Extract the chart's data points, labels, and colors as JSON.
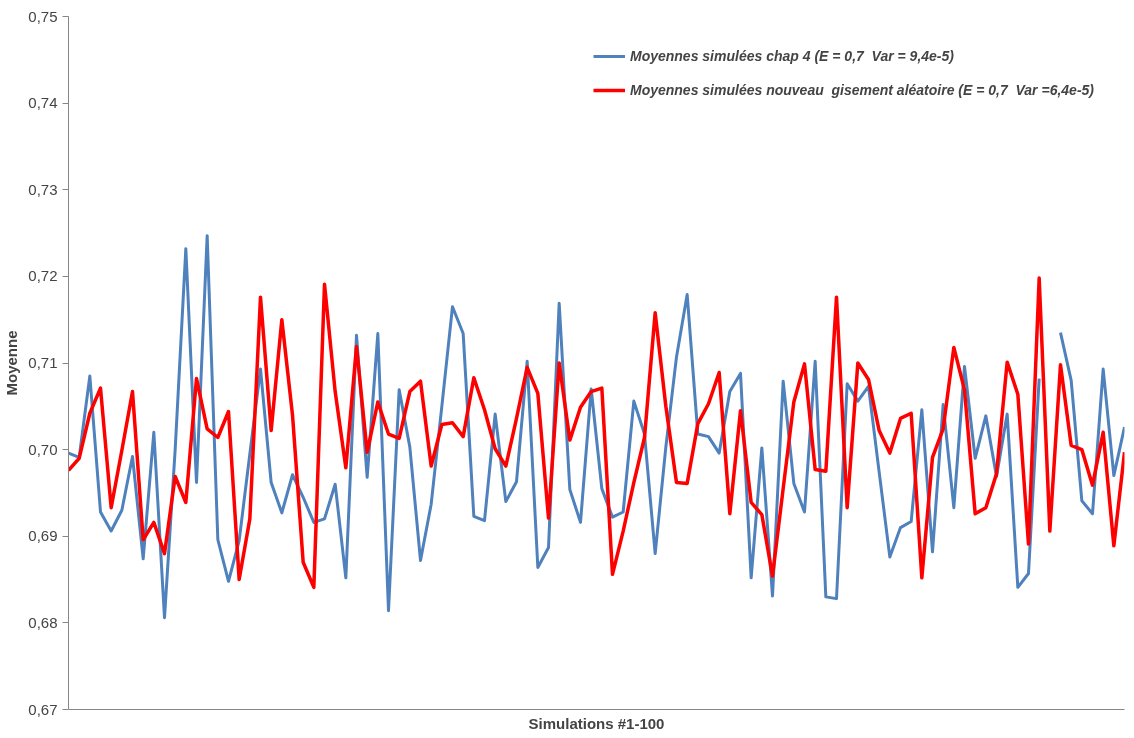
{
  "chart_data": {
    "type": "line",
    "xlabel": "Simulations #1-100",
    "ylabel": "Moyenne",
    "categories": [
      null,
      null,
      null,
      null,
      null,
      null,
      null,
      null,
      null,
      null,
      null,
      null,
      null,
      null,
      null,
      null,
      null,
      null,
      null,
      null,
      null,
      null,
      null,
      null,
      null,
      null,
      null,
      null,
      null,
      null,
      null,
      null,
      null,
      null,
      null,
      null,
      null,
      null,
      null,
      null,
      null,
      null,
      null,
      null,
      null,
      null,
      null,
      null,
      null,
      null,
      null,
      null,
      null,
      null,
      null,
      null,
      null,
      null,
      null,
      null,
      null,
      null,
      null,
      null,
      null,
      null,
      null,
      null,
      null,
      null,
      null,
      null,
      null,
      null,
      null,
      null,
      null,
      null,
      null,
      null,
      null,
      null,
      null,
      null,
      null,
      null,
      null,
      null,
      null,
      null,
      null,
      null,
      null,
      null,
      null,
      null,
      null,
      null,
      null,
      null
    ],
    "series": [
      {
        "name": "Moyennes simulées chap 4 (E = 0,7  Var = 9,4e-5)",
        "color": "#4f81bd",
        "values": [
          0.6996,
          0.6991,
          0.7085,
          0.6928,
          0.6906,
          0.693,
          0.6992,
          0.6874,
          0.702,
          0.6806,
          0.7,
          0.7232,
          0.6962,
          0.7247,
          0.6896,
          0.6848,
          0.6895,
          0.6995,
          0.7093,
          0.6962,
          0.6927,
          0.6971,
          0.6945,
          0.6916,
          0.692,
          0.696,
          0.6852,
          0.7132,
          0.6968,
          0.7134,
          0.6814,
          0.7069,
          0.7003,
          0.6872,
          0.6937,
          0.705,
          0.7165,
          0.7134,
          0.6923,
          0.6918,
          0.7041,
          0.694,
          0.6963,
          0.7102,
          0.6864,
          0.6887,
          0.7169,
          0.6954,
          0.6916,
          0.707,
          0.6955,
          0.6922,
          0.6928,
          0.7056,
          0.7018,
          0.688,
          0.7003,
          0.7107,
          0.7179,
          0.7018,
          0.7015,
          0.6996,
          0.7067,
          0.7088,
          0.6852,
          0.7002,
          0.6831,
          0.7079,
          0.6961,
          0.6928,
          0.7102,
          0.683,
          0.6828,
          0.7076,
          0.7056,
          0.7073,
          0.6974,
          0.6876,
          0.691,
          0.6917,
          0.7046,
          0.6882,
          0.7052,
          0.6933,
          0.7096,
          0.699,
          0.7039,
          0.6969,
          0.7041,
          0.6841,
          0.6857,
          0.7082,
          null,
          0.7135,
          0.708,
          0.6941,
          0.6926,
          0.7093,
          0.697,
          0.7026
        ]
      },
      {
        "name": "Moyennes simulées nouveau  gisement aléatoire (E = 0,7  Var =6,4e-5)",
        "color": "#ff0000",
        "values": [
          0.6976,
          0.699,
          0.7042,
          0.7071,
          0.6933,
          0.6999,
          0.7067,
          0.6896,
          0.6916,
          0.688,
          0.6969,
          0.6939,
          0.7082,
          0.7024,
          0.7014,
          0.7044,
          0.685,
          0.692,
          0.7176,
          0.7022,
          0.715,
          0.704,
          0.687,
          0.6841,
          0.7191,
          0.7067,
          0.6979,
          0.7119,
          0.6997,
          0.7055,
          0.7018,
          0.7013,
          0.7067,
          0.7079,
          0.6981,
          0.7029,
          0.7031,
          0.7015,
          0.7083,
          0.7046,
          0.7001,
          0.6981,
          0.7036,
          0.7095,
          0.7065,
          0.6921,
          0.71,
          0.7011,
          0.7049,
          0.7067,
          0.7071,
          0.6856,
          0.6906,
          0.6962,
          0.7014,
          0.7158,
          0.705,
          0.6962,
          0.6961,
          0.703,
          0.7053,
          0.7089,
          0.6926,
          0.7045,
          0.6939,
          0.6925,
          0.6854,
          0.6955,
          0.7055,
          0.7099,
          0.6977,
          0.6975,
          0.7176,
          0.6933,
          0.71,
          0.7081,
          0.7022,
          0.6996,
          0.7036,
          0.7042,
          0.6852,
          0.6991,
          0.7024,
          0.7118,
          0.7069,
          0.6926,
          0.6933,
          0.6972,
          0.7101,
          0.7064,
          0.6891,
          0.7198,
          0.6906,
          0.7098,
          0.7005,
          0.7,
          0.6959,
          0.702,
          0.6889,
          0.6997
        ]
      }
    ],
    "ylim": [
      0.67,
      0.75
    ],
    "yticks": [
      {
        "value": 0.67,
        "label": "0,67"
      },
      {
        "value": 0.68,
        "label": "0,68"
      },
      {
        "value": 0.69,
        "label": "0,69"
      },
      {
        "value": 0.7,
        "label": "0,70"
      },
      {
        "value": 0.71,
        "label": "0,71"
      },
      {
        "value": 0.72,
        "label": "0,72"
      },
      {
        "value": 0.73,
        "label": "0,73"
      },
      {
        "value": 0.74,
        "label": "0,74"
      },
      {
        "value": 0.75,
        "label": "0,75"
      }
    ],
    "grid": false,
    "legend": "top right",
    "marker": "none",
    "line_style": "solid"
  }
}
